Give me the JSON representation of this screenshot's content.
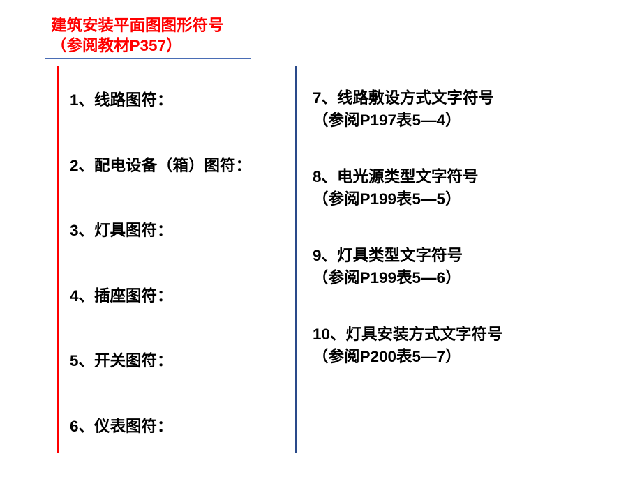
{
  "title": {
    "line1": "建筑安装平面图图形符号",
    "line2": "（参阅教材P357）"
  },
  "left_items": [
    "1、线路图符：",
    "2、配电设备（箱）图符：",
    "3、灯具图符：",
    "4、插座图符：",
    "5、开关图符：",
    "6、仪表图符："
  ],
  "right_items": [
    {
      "line1": "7、线路敷设方式文字符号",
      "line2": "（参阅P197表5—4）"
    },
    {
      "line1": "8、电光源类型文字符号",
      "line2": "（参阅P199表5—5）"
    },
    {
      "line1": "9、灯具类型文字符号",
      "line2": "（参阅P199表5—6）"
    },
    {
      "line1": "10、灯具安装方式文字符号",
      "line2": "（参阅P200表5—7）"
    }
  ],
  "colors": {
    "title_text": "#ff0000",
    "title_border": "#4a6db5",
    "body_text": "#000000",
    "left_line": "#ff0000",
    "center_line": "#2a4a8a",
    "background": "#ffffff"
  },
  "fonts": {
    "title_size": 22.5,
    "item_size": 22.5,
    "weight": "bold"
  }
}
